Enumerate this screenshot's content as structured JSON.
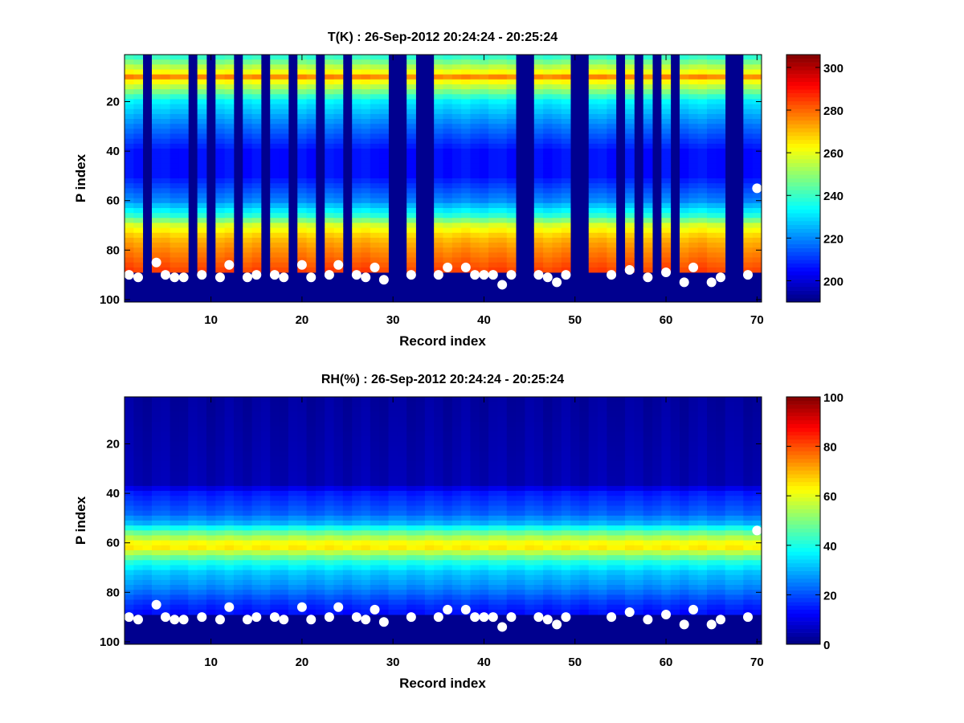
{
  "chart_data": [
    {
      "type": "heatmap",
      "title": "T(K) : 26-Sep-2012 20:24:24 - 20:25:24",
      "xlabel": "Record index",
      "ylabel": "P index",
      "xlim": [
        0.5,
        70.5
      ],
      "ylim": [
        1,
        101
      ],
      "y_reversed": true,
      "xticks": [
        10,
        20,
        30,
        40,
        50,
        60,
        70
      ],
      "yticks": [
        20,
        40,
        60,
        80,
        100
      ],
      "colormap": "jet",
      "colorbar": {
        "range": [
          190,
          306
        ],
        "ticks": [
          200,
          220,
          240,
          260,
          280,
          300
        ]
      },
      "profile": {
        "p_index": [
          1,
          8,
          10,
          12,
          20,
          30,
          40,
          50,
          60,
          66,
          70,
          75,
          80,
          85,
          88
        ],
        "value": [
          236,
          262,
          276,
          262,
          232,
          218,
          206,
          206,
          220,
          238,
          258,
          270,
          276,
          281,
          284
        ]
      },
      "columns_missing": [
        3,
        8,
        10,
        13,
        16,
        19,
        22,
        25,
        30,
        31,
        33,
        34,
        44,
        45,
        50,
        51,
        55,
        57,
        59,
        61,
        67,
        68
      ],
      "surface_markers": [
        {
          "x": 1,
          "y": 90
        },
        {
          "x": 2,
          "y": 91
        },
        {
          "x": 4,
          "y": 85
        },
        {
          "x": 5,
          "y": 90
        },
        {
          "x": 6,
          "y": 91
        },
        {
          "x": 7,
          "y": 91
        },
        {
          "x": 9,
          "y": 90
        },
        {
          "x": 11,
          "y": 91
        },
        {
          "x": 12,
          "y": 86
        },
        {
          "x": 14,
          "y": 91
        },
        {
          "x": 15,
          "y": 90
        },
        {
          "x": 17,
          "y": 90
        },
        {
          "x": 18,
          "y": 91
        },
        {
          "x": 20,
          "y": 86
        },
        {
          "x": 21,
          "y": 91
        },
        {
          "x": 23,
          "y": 90
        },
        {
          "x": 24,
          "y": 86
        },
        {
          "x": 26,
          "y": 90
        },
        {
          "x": 27,
          "y": 91
        },
        {
          "x": 28,
          "y": 87
        },
        {
          "x": 29,
          "y": 92
        },
        {
          "x": 32,
          "y": 90
        },
        {
          "x": 35,
          "y": 90
        },
        {
          "x": 36,
          "y": 87
        },
        {
          "x": 38,
          "y": 87
        },
        {
          "x": 39,
          "y": 90
        },
        {
          "x": 40,
          "y": 90
        },
        {
          "x": 41,
          "y": 90
        },
        {
          "x": 42,
          "y": 94
        },
        {
          "x": 43,
          "y": 90
        },
        {
          "x": 46,
          "y": 90
        },
        {
          "x": 47,
          "y": 91
        },
        {
          "x": 48,
          "y": 93
        },
        {
          "x": 49,
          "y": 90
        },
        {
          "x": 54,
          "y": 90
        },
        {
          "x": 56,
          "y": 88
        },
        {
          "x": 58,
          "y": 91
        },
        {
          "x": 60,
          "y": 89
        },
        {
          "x": 62,
          "y": 93
        },
        {
          "x": 63,
          "y": 87
        },
        {
          "x": 65,
          "y": 93
        },
        {
          "x": 66,
          "y": 91
        },
        {
          "x": 69,
          "y": 90
        },
        {
          "x": 70,
          "y": 55
        }
      ]
    },
    {
      "type": "heatmap",
      "title": "RH(%) : 26-Sep-2012 20:24:24 - 20:25:24",
      "xlabel": "Record index",
      "ylabel": "P index",
      "xlim": [
        0.5,
        70.5
      ],
      "ylim": [
        1,
        101
      ],
      "y_reversed": true,
      "xticks": [
        10,
        20,
        30,
        40,
        50,
        60,
        70
      ],
      "yticks": [
        20,
        40,
        60,
        80,
        100
      ],
      "colormap": "jet",
      "colorbar": {
        "range": [
          0,
          100
        ],
        "ticks": [
          0,
          20,
          40,
          60,
          80,
          100
        ]
      },
      "profile": {
        "p_index": [
          1,
          36,
          40,
          48,
          52,
          56,
          60,
          62,
          64,
          68,
          72,
          78,
          84,
          88
        ],
        "value": [
          3,
          5,
          15,
          22,
          30,
          48,
          62,
          64,
          55,
          40,
          32,
          26,
          18,
          14
        ]
      },
      "columns_missing": [],
      "surface_markers": [
        {
          "x": 1,
          "y": 90
        },
        {
          "x": 2,
          "y": 91
        },
        {
          "x": 4,
          "y": 85
        },
        {
          "x": 5,
          "y": 90
        },
        {
          "x": 6,
          "y": 91
        },
        {
          "x": 7,
          "y": 91
        },
        {
          "x": 9,
          "y": 90
        },
        {
          "x": 11,
          "y": 91
        },
        {
          "x": 12,
          "y": 86
        },
        {
          "x": 14,
          "y": 91
        },
        {
          "x": 15,
          "y": 90
        },
        {
          "x": 17,
          "y": 90
        },
        {
          "x": 18,
          "y": 91
        },
        {
          "x": 20,
          "y": 86
        },
        {
          "x": 21,
          "y": 91
        },
        {
          "x": 23,
          "y": 90
        },
        {
          "x": 24,
          "y": 86
        },
        {
          "x": 26,
          "y": 90
        },
        {
          "x": 27,
          "y": 91
        },
        {
          "x": 28,
          "y": 87
        },
        {
          "x": 29,
          "y": 92
        },
        {
          "x": 32,
          "y": 90
        },
        {
          "x": 35,
          "y": 90
        },
        {
          "x": 36,
          "y": 87
        },
        {
          "x": 38,
          "y": 87
        },
        {
          "x": 39,
          "y": 90
        },
        {
          "x": 40,
          "y": 90
        },
        {
          "x": 41,
          "y": 90
        },
        {
          "x": 42,
          "y": 94
        },
        {
          "x": 43,
          "y": 90
        },
        {
          "x": 46,
          "y": 90
        },
        {
          "x": 47,
          "y": 91
        },
        {
          "x": 48,
          "y": 93
        },
        {
          "x": 49,
          "y": 90
        },
        {
          "x": 54,
          "y": 90
        },
        {
          "x": 56,
          "y": 88
        },
        {
          "x": 58,
          "y": 91
        },
        {
          "x": 60,
          "y": 89
        },
        {
          "x": 62,
          "y": 93
        },
        {
          "x": 63,
          "y": 87
        },
        {
          "x": 65,
          "y": 93
        },
        {
          "x": 66,
          "y": 91
        },
        {
          "x": 69,
          "y": 90
        },
        {
          "x": 70,
          "y": 55
        }
      ]
    }
  ]
}
